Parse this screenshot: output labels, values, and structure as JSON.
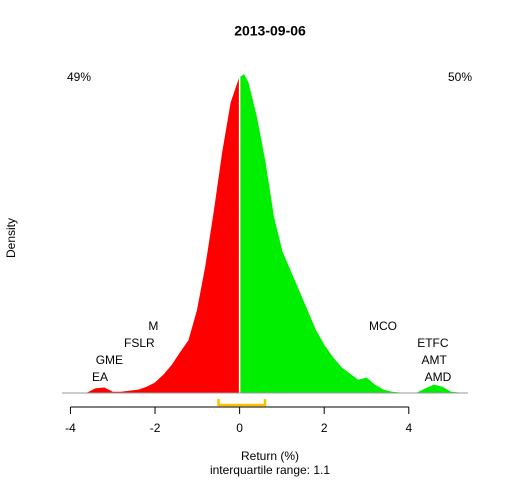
{
  "chart_data": {
    "type": "density",
    "title": "2013-09-06",
    "xlabel": "Return (%)",
    "ylabel": "Density",
    "subtitle": "interquartile range: 1.1",
    "xlim": [
      -4.2,
      5.4
    ],
    "ylim": [
      0,
      0.47
    ],
    "xticks": [
      -4,
      -2,
      0,
      2,
      4
    ],
    "split": 0,
    "left_color": "#ff0000",
    "right_color": "#00ee00",
    "iqr_color": "#ffc000",
    "iqr_bounds": [
      -0.5,
      0.6
    ],
    "left_share": {
      "value": 49,
      "label": "49%"
    },
    "right_share": {
      "value": 50,
      "label": "50%"
    },
    "x": [
      -3.6,
      -3.4,
      -3.2,
      -3.0,
      -2.8,
      -2.4,
      -2.2,
      -2.0,
      -1.8,
      -1.6,
      -1.4,
      -1.2,
      -1.0,
      -0.8,
      -0.6,
      -0.4,
      -0.2,
      0,
      0.1,
      0.2,
      0.4,
      0.6,
      0.8,
      1.0,
      1.2,
      1.4,
      1.6,
      1.8,
      2.0,
      2.2,
      2.4,
      2.6,
      2.8,
      3.0,
      3.2,
      3.4,
      3.6,
      3.8,
      4.2,
      4.4,
      4.6,
      4.8,
      5.0,
      5.2
    ],
    "values": [
      0,
      0.006,
      0.007,
      0.001,
      0.001,
      0.004,
      0.008,
      0.014,
      0.025,
      0.039,
      0.057,
      0.074,
      0.116,
      0.179,
      0.256,
      0.34,
      0.41,
      0.445,
      0.449,
      0.438,
      0.389,
      0.326,
      0.249,
      0.2,
      0.172,
      0.144,
      0.116,
      0.088,
      0.067,
      0.05,
      0.036,
      0.027,
      0.018,
      0.021,
      0.011,
      0.004,
      0.001,
      0,
      0,
      0.006,
      0.011,
      0.008,
      0.001,
      0
    ],
    "left_labels": [
      {
        "label": "EA",
        "x": -3.3
      },
      {
        "label": "GME",
        "x": -3.08
      },
      {
        "label": "FSLR",
        "x": -2.37
      },
      {
        "label": "M",
        "x": -2.04
      }
    ],
    "right_labels": [
      {
        "label": "MCO",
        "x": 3.39
      },
      {
        "label": "ETFC",
        "x": 4.57
      },
      {
        "label": "AMT",
        "x": 4.6
      },
      {
        "label": "AMD",
        "x": 4.69
      }
    ]
  }
}
